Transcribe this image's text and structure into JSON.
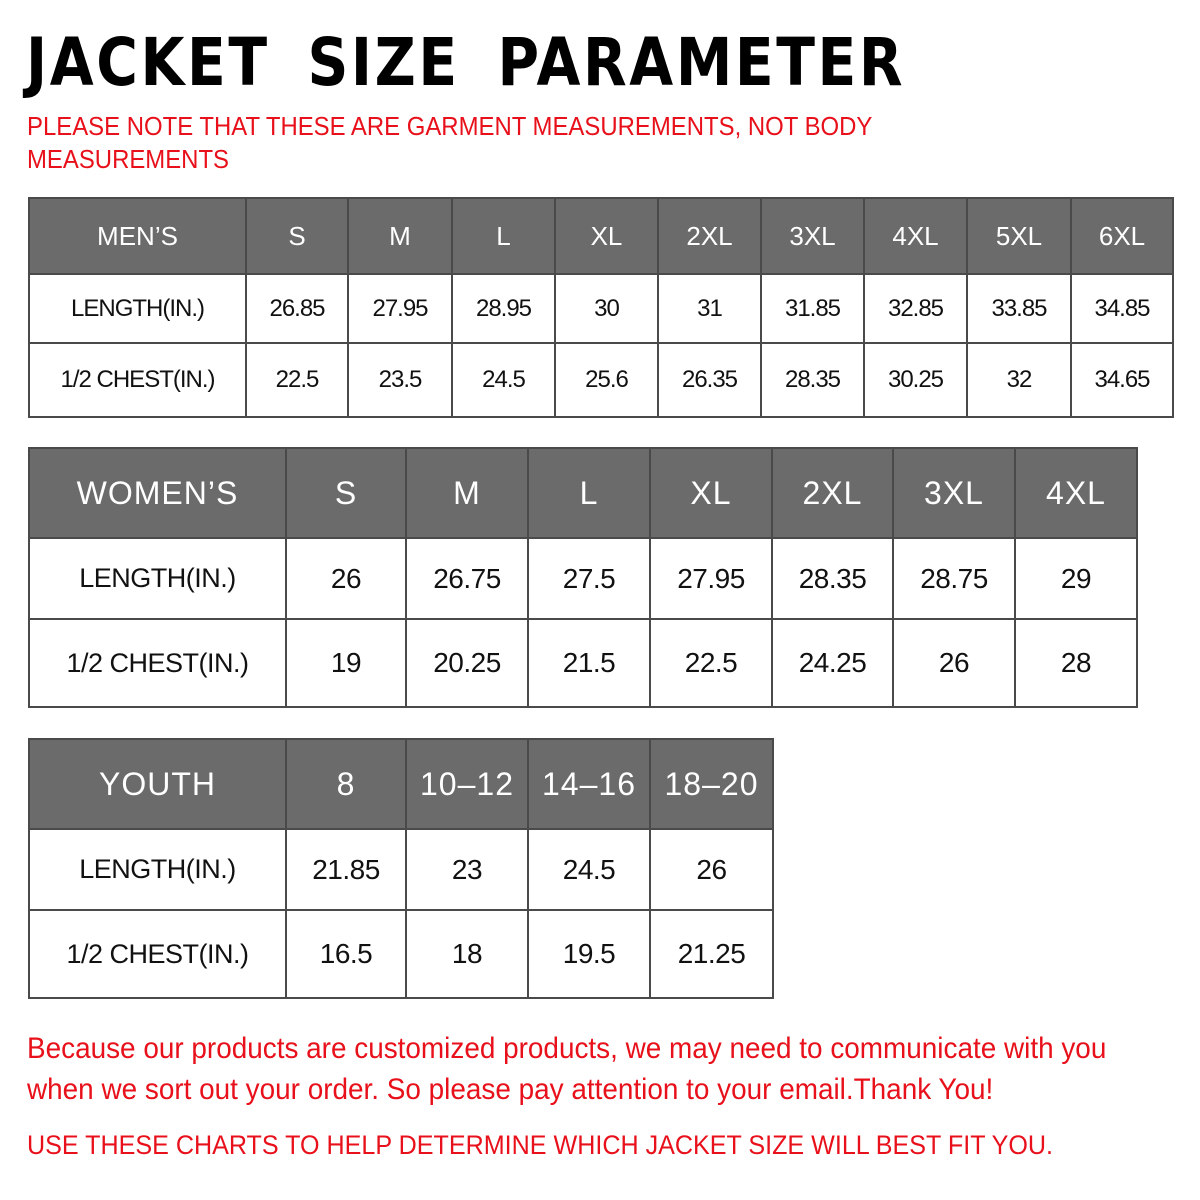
{
  "title": "JACKET SIZE PARAMETER",
  "note": "PLEASE NOTE THAT THESE ARE GARMENT MEASUREMENTS, NOT BODY MEASUREMENTS",
  "colors": {
    "header_bg": "#6b6b6b",
    "note_red": "#e8101a"
  },
  "tables": {
    "men": {
      "header": [
        "MEN’S",
        "S",
        "M",
        "L",
        "XL",
        "2XL",
        "3XL",
        "4XL",
        "5XL",
        "6XL"
      ],
      "rows": [
        [
          "LENGTH(IN.)",
          "26.85",
          "27.95",
          "28.95",
          "30",
          "31",
          "31.85",
          "32.85",
          "33.85",
          "34.85"
        ],
        [
          "1/2 CHEST(IN.)",
          "22.5",
          "23.5",
          "24.5",
          "25.6",
          "26.35",
          "28.35",
          "30.25",
          "32",
          "34.65"
        ]
      ]
    },
    "women": {
      "header": [
        "WOMEN’S",
        "S",
        "M",
        "L",
        "XL",
        "2XL",
        "3XL",
        "4XL"
      ],
      "rows": [
        [
          "LENGTH(IN.)",
          "26",
          "26.75",
          "27.5",
          "27.95",
          "28.35",
          "28.75",
          "29"
        ],
        [
          "1/2 CHEST(IN.)",
          "19",
          "20.25",
          "21.5",
          "22.5",
          "24.25",
          "26",
          "28"
        ]
      ]
    },
    "youth": {
      "header": [
        "YOUTH",
        "8",
        "10–12",
        "14–16",
        "18–20"
      ],
      "rows": [
        [
          "LENGTH(IN.)",
          "21.85",
          "23",
          "24.5",
          "26"
        ],
        [
          "1/2 CHEST(IN.)",
          "16.5",
          "18",
          "19.5",
          "21.25"
        ]
      ]
    }
  },
  "footer": {
    "line1": "Because our products are customized products, we may need to communicate with you",
    "line2": "when we sort out your order. So please pay attention to your email.Thank You!",
    "line3": "USE THESE CHARTS TO HELP DETERMINE WHICH JACKET SIZE WILL BEST FIT YOU."
  }
}
